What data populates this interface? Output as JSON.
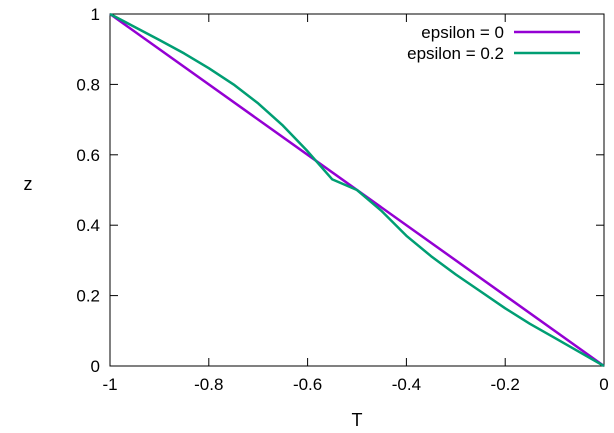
{
  "chart_data": {
    "type": "line",
    "xlabel": "T",
    "ylabel": "z",
    "xlim": [
      -1,
      0
    ],
    "ylim": [
      0,
      1
    ],
    "xticks": [
      -1,
      -0.8,
      -0.6,
      -0.4,
      -0.2,
      0
    ],
    "xtick_labels": [
      "-1",
      "-0.8",
      "-0.6",
      "-0.4",
      "-0.2",
      "0"
    ],
    "yticks": [
      0,
      0.2,
      0.4,
      0.6,
      0.8,
      1
    ],
    "ytick_labels": [
      "0",
      "0.2",
      "0.4",
      "0.6",
      "0.8",
      "1"
    ],
    "grid": false,
    "legend_position": "top-right",
    "series": [
      {
        "name": "epsilon = 0",
        "color": "#9400d3",
        "x": [
          -1,
          0
        ],
        "y": [
          1,
          0
        ]
      },
      {
        "name": "epsilon = 0.2",
        "color": "#009e73",
        "x": [
          -1,
          -0.95,
          -0.9,
          -0.85,
          -0.8,
          -0.75,
          -0.7,
          -0.65,
          -0.6,
          -0.55,
          -0.5,
          -0.45,
          -0.4,
          -0.35,
          -0.3,
          -0.25,
          -0.2,
          -0.15,
          -0.1,
          -0.05,
          0
        ],
        "y": [
          1,
          0.963,
          0.926,
          0.888,
          0.846,
          0.8,
          0.746,
          0.683,
          0.61,
          0.53,
          0.5,
          0.44,
          0.37,
          0.312,
          0.26,
          0.212,
          0.164,
          0.12,
          0.08,
          0.04,
          0
        ]
      }
    ]
  }
}
